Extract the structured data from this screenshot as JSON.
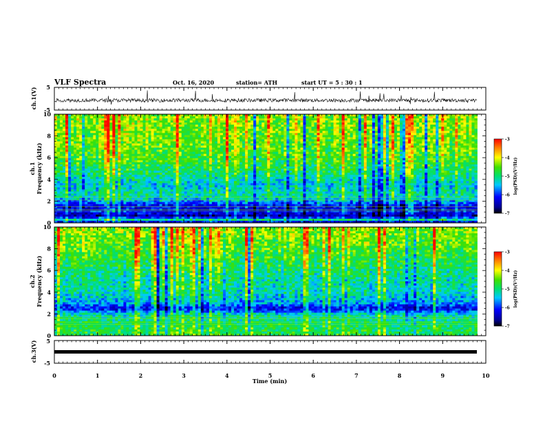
{
  "header": {
    "title": "VLF Spectra",
    "date": "Oct. 16, 2020",
    "station": "station= ATH",
    "start": "start  UT =  5 : 30 : 1"
  },
  "chart_data": [
    {
      "type": "line",
      "panel": "ch1-waveform",
      "ylabel": "ch.1(V)",
      "ylim": [
        -5,
        5
      ],
      "yticks": [
        "5",
        "-5"
      ],
      "xlim": [
        0,
        10
      ],
      "baseline": -0.7,
      "noise_amplitude": 1.0,
      "data_extent_min": 9.8,
      "color": "#000000"
    },
    {
      "type": "heatmap",
      "panel": "ch1-spectrogram",
      "ylabel": "ch.1",
      "ylabel2": "Frequency  (kHz)",
      "xlim": [
        0,
        10
      ],
      "ylim": [
        0,
        10
      ],
      "yticks": [
        "0",
        "2",
        "4",
        "6",
        "8",
        "10"
      ],
      "data_extent_min": 9.8,
      "colorbar": {
        "label": "log(PSD)(V²/Hz)",
        "range": [
          -7,
          -3
        ],
        "ticks": [
          "-3",
          "-4",
          "-5",
          "-6",
          "-7"
        ]
      },
      "profile_kHz": [
        {
          "f": 0.0,
          "level": -6.6
        },
        {
          "f": 0.3,
          "level": -5.0
        },
        {
          "f": 0.6,
          "level": -6.6
        },
        {
          "f": 1.0,
          "level": -6.1
        },
        {
          "f": 1.5,
          "level": -6.3
        },
        {
          "f": 2.0,
          "level": -5.6
        },
        {
          "f": 2.5,
          "level": -5.1
        },
        {
          "f": 3.5,
          "level": -5.4
        },
        {
          "f": 4.5,
          "level": -5.0
        },
        {
          "f": 6.0,
          "level": -4.6
        },
        {
          "f": 8.0,
          "level": -4.4
        },
        {
          "f": 10.0,
          "level": -4.3
        }
      ]
    },
    {
      "type": "heatmap",
      "panel": "ch2-spectrogram",
      "ylabel": "ch.2",
      "ylabel2": "Frequency  (kHz)",
      "xlim": [
        0,
        10
      ],
      "ylim": [
        0,
        10
      ],
      "yticks": [
        "0",
        "2",
        "4",
        "6",
        "8",
        "10"
      ],
      "data_extent_min": 9.8,
      "colorbar": {
        "label": "log(PSD)(V²/Hz)",
        "range": [
          -7,
          -3
        ],
        "ticks": [
          "-3",
          "-4",
          "-5",
          "-6",
          "-7"
        ]
      },
      "profile_kHz": [
        {
          "f": 0.0,
          "level": -4.8
        },
        {
          "f": 1.0,
          "level": -4.9
        },
        {
          "f": 2.0,
          "level": -5.3
        },
        {
          "f": 2.5,
          "level": -6.3
        },
        {
          "f": 3.0,
          "level": -5.6
        },
        {
          "f": 4.0,
          "level": -5.2
        },
        {
          "f": 5.0,
          "level": -5.2
        },
        {
          "f": 6.0,
          "level": -5.0
        },
        {
          "f": 8.0,
          "level": -4.6
        },
        {
          "f": 10.0,
          "level": -4.3
        }
      ]
    },
    {
      "type": "line",
      "panel": "ch3-waveform",
      "ylabel": "ch.3(V)",
      "ylim": [
        -5,
        5
      ],
      "yticks": [
        "5",
        "-5"
      ],
      "xlim": [
        0,
        10
      ],
      "baseline": 0,
      "data_extent_min": 9.8,
      "color": "#000000",
      "xlabel": "Time  (min)",
      "xticks": [
        "0",
        "1",
        "2",
        "3",
        "4",
        "5",
        "6",
        "7",
        "8",
        "9",
        "10"
      ]
    }
  ]
}
